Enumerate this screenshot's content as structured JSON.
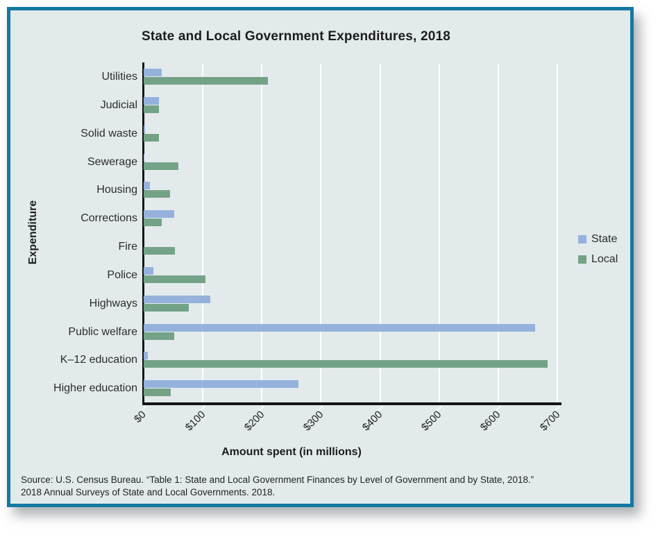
{
  "chart_data": {
    "type": "bar",
    "orientation": "horizontal",
    "title": "State and Local Government Expenditures, 2018",
    "xlabel": "Amount spent (in millions)",
    "ylabel": "Expenditure",
    "x_tick_labels": [
      "$0",
      "$100",
      "$200",
      "$300",
      "$400",
      "$500",
      "$600",
      "$700"
    ],
    "x_tick_values": [
      0,
      100,
      200,
      300,
      400,
      500,
      600,
      700
    ],
    "x_max": 700,
    "grid": true,
    "legend_position": "right",
    "categories": [
      "Utilities",
      "Judicial",
      "Solid waste",
      "Sewerage",
      "Housing",
      "Corrections",
      "Fire",
      "Police",
      "Highways",
      "Public welfare",
      "K–12 education",
      "Higher education"
    ],
    "series": [
      {
        "name": "State",
        "color": "#94b2dc",
        "values": [
          31,
          26,
          2,
          1,
          10,
          52,
          0,
          16,
          113,
          662,
          7,
          262
        ]
      },
      {
        "name": "Local",
        "color": "#74a287",
        "values": [
          210,
          26,
          26,
          59,
          45,
          31,
          53,
          105,
          76,
          52,
          684,
          46
        ]
      }
    ]
  },
  "source": {
    "line1": "Source: U.S. Census Bureau. “Table 1: State and Local Government Finances by Level of Government and by State, 2018.”",
    "line2": "2018 Annual Surveys of State and Local Governments. 2018."
  },
  "colors": {
    "frame_border": "#1478a3",
    "chart_background": "#e3eaec",
    "axis": "#141414",
    "gridline": "#ffffff",
    "state_series": "#94b2dc",
    "local_series": "#74a287"
  }
}
